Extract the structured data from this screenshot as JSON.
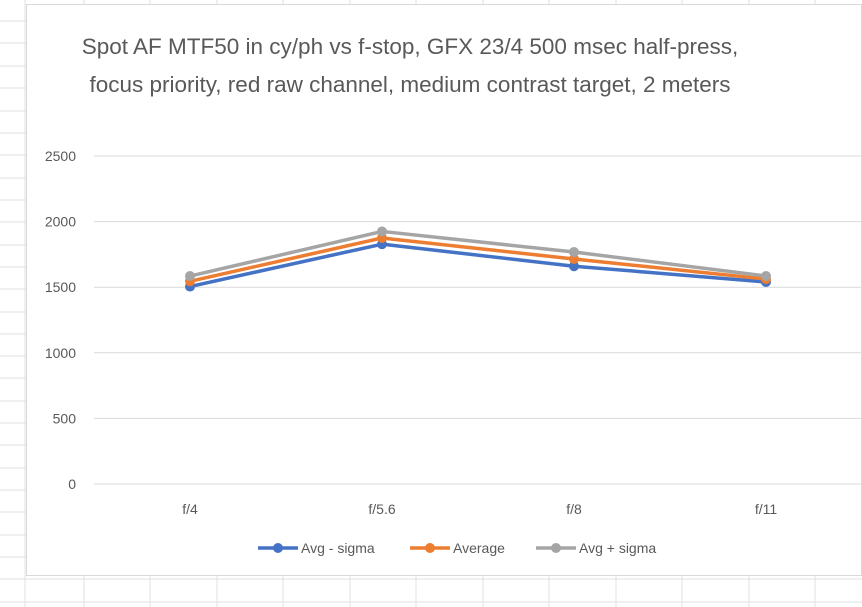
{
  "chart_data": {
    "type": "line",
    "title": "Spot AF MTF50 in cy/ph vs f-stop, GFX 23/4 500 msec half-press, focus priority, red raw channel, medium contrast target, 2 meters",
    "xlabel": "",
    "ylabel": "",
    "categories": [
      "f/4",
      "f/5.6",
      "f/8",
      "f/11"
    ],
    "ylim": [
      0,
      2500
    ],
    "yticks": [
      0,
      500,
      1000,
      1500,
      2000,
      2500
    ],
    "grid": true,
    "legend_position": "bottom",
    "series": [
      {
        "name": "Avg - sigma",
        "color": "#4472c4",
        "values": [
          1505,
          1828,
          1660,
          1540
        ]
      },
      {
        "name": "Average",
        "color": "#ed7d31",
        "values": [
          1545,
          1875,
          1715,
          1562
        ]
      },
      {
        "name": "Avg + sigma",
        "color": "#a5a5a5",
        "values": [
          1585,
          1925,
          1768,
          1585
        ]
      }
    ]
  }
}
